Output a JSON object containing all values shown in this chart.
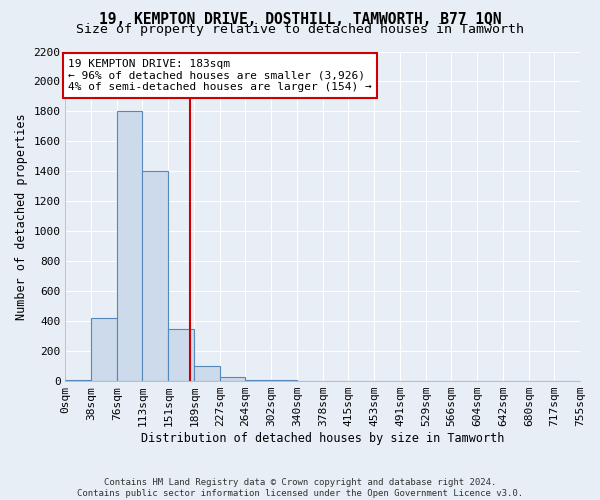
{
  "title": "19, KEMPTON DRIVE, DOSTHILL, TAMWORTH, B77 1QN",
  "subtitle": "Size of property relative to detached houses in Tamworth",
  "xlabel": "Distribution of detached houses by size in Tamworth",
  "ylabel": "Number of detached properties",
  "property_size": 183,
  "annotation_line1": "19 KEMPTON DRIVE: 183sqm",
  "annotation_line2": "← 96% of detached houses are smaller (3,926)",
  "annotation_line3": "4% of semi-detached houses are larger (154) →",
  "footer_line1": "Contains HM Land Registry data © Crown copyright and database right 2024.",
  "footer_line2": "Contains public sector information licensed under the Open Government Licence v3.0.",
  "bin_edges": [
    0,
    38,
    76,
    113,
    151,
    189,
    227,
    264,
    302,
    340,
    378,
    415,
    453,
    491,
    529,
    566,
    604,
    642,
    680,
    717,
    755
  ],
  "bin_labels": [
    "0sqm",
    "38sqm",
    "76sqm",
    "113sqm",
    "151sqm",
    "189sqm",
    "227sqm",
    "264sqm",
    "302sqm",
    "340sqm",
    "378sqm",
    "415sqm",
    "453sqm",
    "491sqm",
    "529sqm",
    "566sqm",
    "604sqm",
    "642sqm",
    "680sqm",
    "717sqm",
    "755sqm"
  ],
  "bar_heights": [
    5,
    420,
    1800,
    1400,
    350,
    100,
    30,
    10,
    5,
    2,
    1,
    0,
    0,
    0,
    0,
    0,
    0,
    0,
    0,
    0
  ],
  "bar_color": "#ccdaeb",
  "bar_edgecolor": "#5588bb",
  "vline_x": 183,
  "vline_color": "#cc0000",
  "annotation_box_color": "#cc0000",
  "ylim": [
    0,
    2200
  ],
  "yticks": [
    0,
    200,
    400,
    600,
    800,
    1000,
    1200,
    1400,
    1600,
    1800,
    2000,
    2200
  ],
  "background_color": "#e8eef5",
  "grid_color": "#ffffff",
  "title_fontsize": 10.5,
  "subtitle_fontsize": 9.5,
  "axis_label_fontsize": 8.5,
  "tick_fontsize": 8
}
